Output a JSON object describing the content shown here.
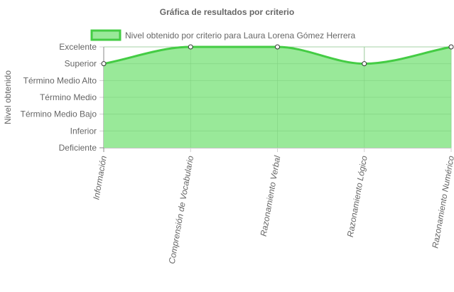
{
  "chart_data": {
    "type": "area",
    "title": "Gráfica de resultados por criterio",
    "ylabel": "Nivel obtenido",
    "xlabel": "",
    "y_levels": [
      "Deficiente",
      "Inferior",
      "Término Medio Bajo",
      "Término Medio",
      "Término Medio Alto",
      "Superior",
      "Excelente"
    ],
    "categories": [
      "Información",
      "Comprensión de Vocabulario",
      "Razonamiento Verbal",
      "Razonamiento Lógico",
      "Razonamiento Numérico"
    ],
    "series": [
      {
        "name": "Nivel obtenido por criterio para Laura Lorena Gómez Herrera",
        "values": [
          "Superior",
          "Excelente",
          "Excelente",
          "Superior",
          "Excelente"
        ]
      }
    ],
    "legend_position": "top",
    "grid": true,
    "colors": {
      "fill": "#99e999",
      "stroke": "#44cc44",
      "grid": "#d0d0d0",
      "axis": "#888888"
    }
  }
}
